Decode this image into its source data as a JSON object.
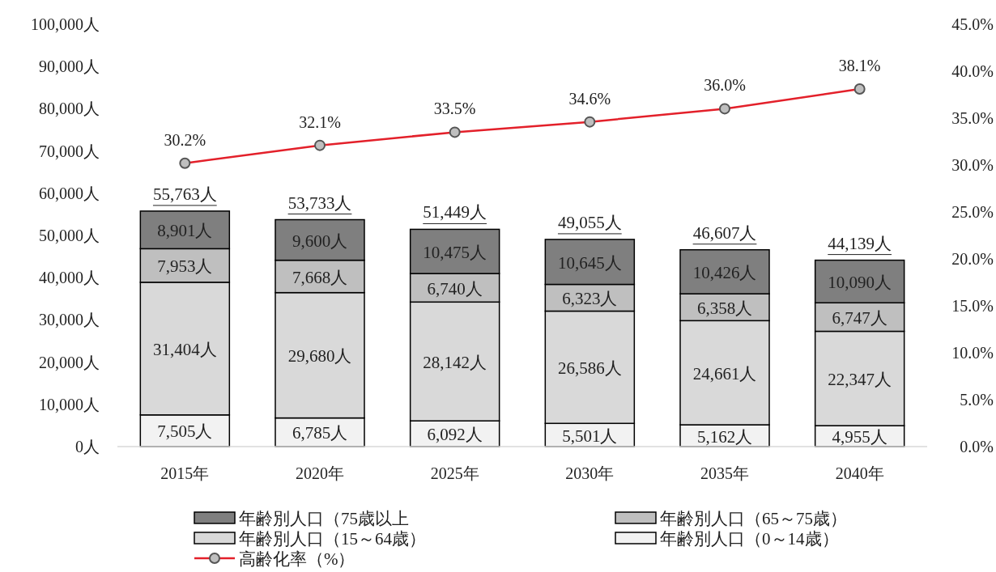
{
  "chart_data": {
    "type": "bar",
    "stacked": true,
    "categories": [
      "2015年",
      "2020年",
      "2025年",
      "2030年",
      "2035年",
      "2040年"
    ],
    "ylim": [
      0,
      100000
    ],
    "yticks": [
      {
        "value": 0,
        "label": "0人"
      },
      {
        "value": 10000,
        "label": "10,000人"
      },
      {
        "value": 20000,
        "label": "20,000人"
      },
      {
        "value": 30000,
        "label": "30,000人"
      },
      {
        "value": 40000,
        "label": "40,000人"
      },
      {
        "value": 50000,
        "label": "50,000人"
      },
      {
        "value": 60000,
        "label": "60,000人"
      },
      {
        "value": 70000,
        "label": "70,000人"
      },
      {
        "value": 80000,
        "label": "80,000人"
      },
      {
        "value": 90000,
        "label": "90,000人"
      },
      {
        "value": 100000,
        "label": "100,000人"
      }
    ],
    "y2lim": [
      0,
      45
    ],
    "y2ticks": [
      {
        "value": 0,
        "label": "0.0%"
      },
      {
        "value": 5,
        "label": "5.0%"
      },
      {
        "value": 10,
        "label": "10.0%"
      },
      {
        "value": 15,
        "label": "15.0%"
      },
      {
        "value": 20,
        "label": "20.0%"
      },
      {
        "value": 25,
        "label": "25.0%"
      },
      {
        "value": 30,
        "label": "30.0%"
      },
      {
        "value": 35,
        "label": "35.0%"
      },
      {
        "value": 40,
        "label": "40.0%"
      },
      {
        "value": 45,
        "label": "45.0%"
      }
    ],
    "legend": "bottom",
    "marker": "circle",
    "totals": [
      "55,763人",
      "53,733人",
      "51,449人",
      "49,055人",
      "46,607人",
      "44,139人"
    ],
    "series": [
      {
        "name": "年齢別人口（0～14歳）",
        "color": "#f2f2f2",
        "values": [
          7505,
          6785,
          6092,
          5501,
          5162,
          4955
        ],
        "value_labels": [
          "7,505人",
          "6,785人",
          "6,092人",
          "5,501人",
          "5,162人",
          "4,955人"
        ]
      },
      {
        "name": "年齢別人口（15～64歳）",
        "color": "#d9d9d9",
        "values": [
          31404,
          29680,
          28142,
          26586,
          24661,
          22347
        ],
        "value_labels": [
          "31,404人",
          "29,680人",
          "28,142人",
          "26,586人",
          "24,661人",
          "22,347人"
        ]
      },
      {
        "name": "年齢別人口（65～75歳）",
        "color": "#bfbfbf",
        "values": [
          7953,
          7668,
          6740,
          6323,
          6358,
          6747
        ],
        "value_labels": [
          "7,953人",
          "7,668人",
          "6,740人",
          "6,323人",
          "6,358人",
          "6,747人"
        ]
      },
      {
        "name": "年齢別人口（75歳以上",
        "color": "#7f7f7f",
        "values": [
          8901,
          9600,
          10475,
          10645,
          10426,
          10090
        ],
        "value_labels": [
          "8,901人",
          "9,600人",
          "10,475人",
          "10,645人",
          "10,426人",
          "10,090人"
        ]
      },
      {
        "name": "高齢化率（%）",
        "type": "line",
        "axis": "y2",
        "color": "#e3202a",
        "values": [
          30.2,
          32.1,
          33.5,
          34.6,
          36.0,
          38.1
        ],
        "value_labels": [
          "30.2%",
          "32.1%",
          "33.5%",
          "34.6%",
          "36.0%",
          "38.1%"
        ]
      }
    ]
  }
}
